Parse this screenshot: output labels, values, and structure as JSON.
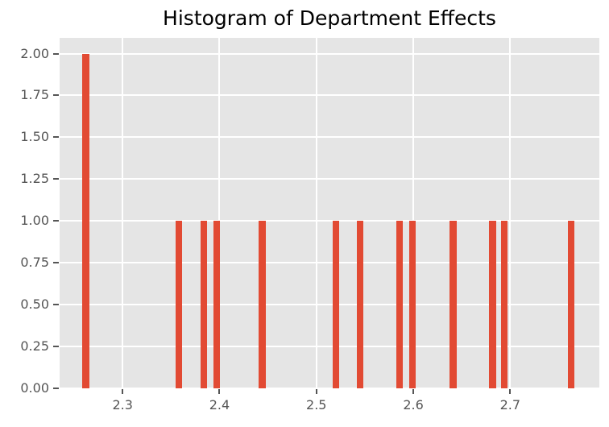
{
  "chart_data": {
    "type": "bar",
    "subtype": "histogram",
    "title": "Histogram of Department Effects",
    "xlabel": "",
    "ylabel": "",
    "bin_centers": [
      2.262,
      2.358,
      2.384,
      2.397,
      2.444,
      2.52,
      2.545,
      2.586,
      2.599,
      2.641,
      2.682,
      2.694,
      2.763
    ],
    "counts": [
      2,
      1,
      1,
      1,
      1,
      1,
      1,
      1,
      1,
      1,
      1,
      1,
      1
    ],
    "bar_width": 0.007,
    "xlim": [
      2.235,
      2.792
    ],
    "ylim": [
      0,
      2.094
    ],
    "xticks": [
      2.3,
      2.4,
      2.5,
      2.6,
      2.7
    ],
    "xtick_labels": [
      "2.3",
      "2.4",
      "2.5",
      "2.6",
      "2.7"
    ],
    "yticks": [
      0,
      0.25,
      0.5,
      0.75,
      1.0,
      1.25,
      1.5,
      1.75,
      2.0
    ],
    "ytick_labels": [
      "0.00",
      "0.25",
      "0.50",
      "0.75",
      "1.00",
      "1.25",
      "1.50",
      "1.75",
      "2.00"
    ],
    "grid": true,
    "legend": false,
    "style": {
      "bar_color": "#E24A33",
      "axes_background": "#E5E5E5",
      "figure_background": "#FFFFFF",
      "grid_color": "#FFFFFF",
      "tick_color": "#555555",
      "tick_label_color": "#555555",
      "title_color": "#000000"
    }
  }
}
